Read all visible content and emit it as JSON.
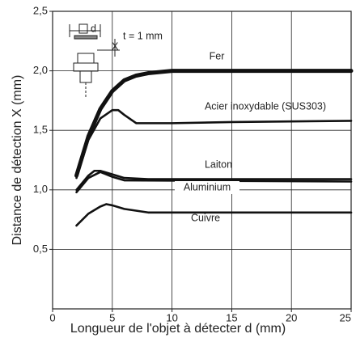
{
  "chart_data": {
    "type": "line",
    "xlabel": "Longueur de l'objet à détecter d (mm)",
    "ylabel": "Distance de détection X (mm)",
    "xlim": [
      0,
      25
    ],
    "xticks": [
      0,
      5,
      10,
      15,
      20,
      25
    ],
    "ylim": [
      0,
      2.5
    ],
    "yticks": [
      {
        "value": 0.5,
        "label": "0,5"
      },
      {
        "value": 1.0,
        "label": "1,0"
      },
      {
        "value": 1.5,
        "label": "1,5"
      },
      {
        "value": 2.0,
        "label": "2,0"
      },
      {
        "value": 2.5,
        "label": "2,5"
      }
    ],
    "grid": true,
    "diagram_labels": [
      "d",
      "t = 1 mm",
      "X"
    ],
    "series": [
      {
        "name": "Fer",
        "color": "#111111",
        "x": [
          2,
          3,
          4,
          5,
          6,
          7,
          8,
          10,
          25
        ],
        "values": [
          1.12,
          1.45,
          1.68,
          1.83,
          1.92,
          1.96,
          1.98,
          2.0,
          2.0
        ]
      },
      {
        "name": "Acier inoxydable (SUS303)",
        "color": "#111111",
        "x": [
          2,
          3,
          4,
          5,
          5.5,
          6,
          7,
          8,
          10,
          15,
          25
        ],
        "values": [
          1.1,
          1.42,
          1.6,
          1.67,
          1.67,
          1.63,
          1.56,
          1.56,
          1.56,
          1.57,
          1.58
        ]
      },
      {
        "name": "Laiton",
        "color": "#111111",
        "x": [
          2,
          3,
          3.5,
          4,
          5,
          6,
          8,
          25
        ],
        "values": [
          1.0,
          1.12,
          1.16,
          1.16,
          1.13,
          1.1,
          1.09,
          1.09
        ]
      },
      {
        "name": "Aluminium",
        "color": "#111111",
        "x": [
          2,
          3,
          4,
          5,
          6,
          25
        ],
        "values": [
          0.98,
          1.1,
          1.15,
          1.11,
          1.08,
          1.07
        ]
      },
      {
        "name": "Cuivre",
        "color": "#111111",
        "x": [
          2,
          3,
          4,
          4.5,
          5,
          6,
          8,
          25
        ],
        "values": [
          0.7,
          0.8,
          0.86,
          0.88,
          0.87,
          0.84,
          0.81,
          0.81
        ]
      }
    ]
  }
}
